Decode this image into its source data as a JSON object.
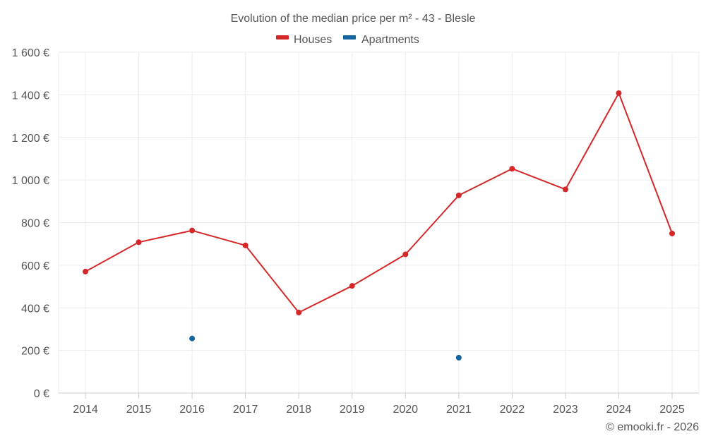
{
  "chart_data": {
    "type": "line",
    "title": "Evolution of the median price per m² - 43 - Blesle",
    "xlabel": "",
    "ylabel": "",
    "categories": [
      "2014",
      "2015",
      "2016",
      "2017",
      "2018",
      "2019",
      "2020",
      "2021",
      "2022",
      "2023",
      "2024",
      "2025"
    ],
    "ylim": [
      0,
      1600
    ],
    "yticks": [
      0,
      200,
      400,
      600,
      800,
      1000,
      1200,
      1400,
      1600
    ],
    "ytick_labels": [
      "0 €",
      "200 €",
      "400 €",
      "600 €",
      "800 €",
      "1 000 €",
      "1 200 €",
      "1 400 €",
      "1 600 €"
    ],
    "grid": true,
    "legend_position": "top-center",
    "series": [
      {
        "name": "Houses",
        "color": "#d62728",
        "values": [
          570,
          708,
          763,
          693,
          378,
          503,
          651,
          928,
          1053,
          956,
          1408,
          749
        ]
      },
      {
        "name": "Apartments",
        "color": "#1565a0",
        "values": [
          null,
          null,
          256,
          null,
          null,
          null,
          null,
          166,
          null,
          null,
          null,
          null
        ]
      }
    ],
    "credit": "© emooki.fr - 2026"
  }
}
